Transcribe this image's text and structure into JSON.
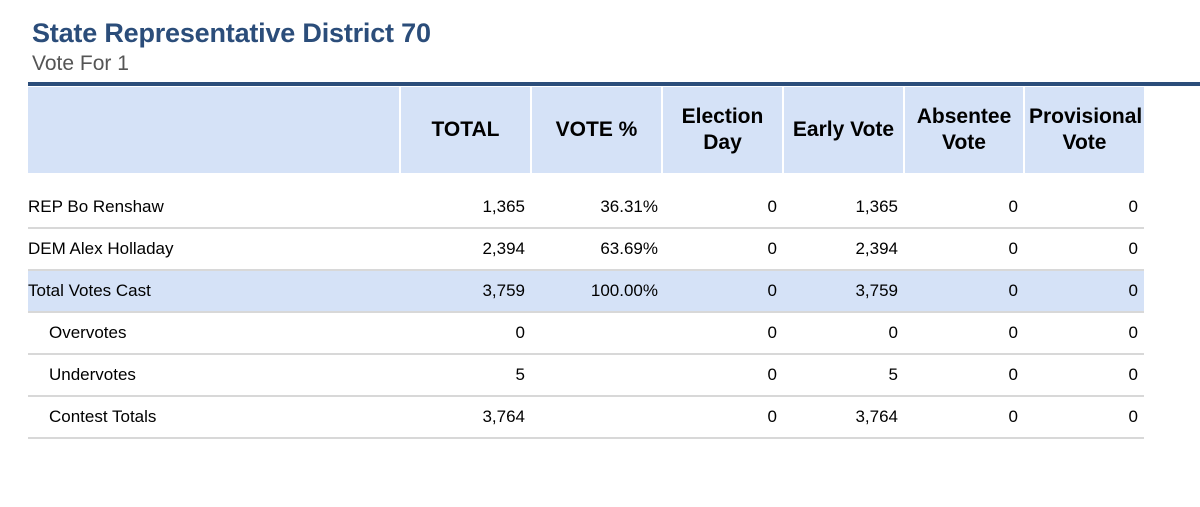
{
  "contest": {
    "title": "State Representative District 70",
    "subtitle": "Vote For 1"
  },
  "table": {
    "headers": {
      "choice": "",
      "total": "TOTAL",
      "vote_pct": "VOTE %",
      "election_day": "Election Day",
      "early_vote": "Early Vote",
      "absentee_vote": "Absentee Vote",
      "provisional_vote": "Provisional Vote"
    },
    "rows": [
      {
        "name": "REP Bo Renshaw",
        "total": "1,365",
        "vote_pct": "36.31%",
        "election_day": "0",
        "early_vote": "1,365",
        "absentee_vote": "0",
        "provisional_vote": "0"
      },
      {
        "name": "DEM Alex Holladay",
        "total": "2,394",
        "vote_pct": "63.69%",
        "election_day": "0",
        "early_vote": "2,394",
        "absentee_vote": "0",
        "provisional_vote": "0"
      },
      {
        "name": "Total Votes Cast",
        "total": "3,759",
        "vote_pct": "100.00%",
        "election_day": "0",
        "early_vote": "3,759",
        "absentee_vote": "0",
        "provisional_vote": "0"
      },
      {
        "name": "Overvotes",
        "total": "0",
        "vote_pct": "",
        "election_day": "0",
        "early_vote": "0",
        "absentee_vote": "0",
        "provisional_vote": "0"
      },
      {
        "name": "Undervotes",
        "total": "5",
        "vote_pct": "",
        "election_day": "0",
        "early_vote": "5",
        "absentee_vote": "0",
        "provisional_vote": "0"
      },
      {
        "name": "Contest Totals",
        "total": "3,764",
        "vote_pct": "",
        "election_day": "0",
        "early_vote": "3,764",
        "absentee_vote": "0",
        "provisional_vote": "0"
      }
    ]
  },
  "colors": {
    "title": "#2b4d7a",
    "header_fill": "#d5e2f7",
    "total_row_fill": "#d5e2f7",
    "rule": "#2b4d7a"
  }
}
